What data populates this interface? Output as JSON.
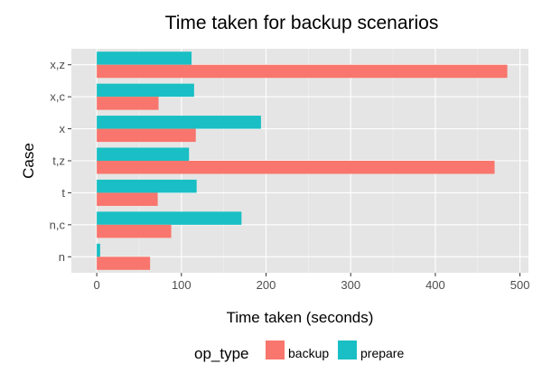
{
  "chart_data": {
    "type": "bar",
    "orientation": "horizontal",
    "title": "Time taken for backup scenarios",
    "xlabel": "Time taken (seconds)",
    "ylabel": "Case",
    "xlim": [
      -30,
      510
    ],
    "xticks": [
      0,
      100,
      200,
      300,
      400,
      500
    ],
    "categories": [
      "x,z",
      "x,c",
      "x",
      "t,z",
      "t",
      "n,c",
      "n"
    ],
    "series": [
      {
        "name": "prepare",
        "color": "#19BFC4",
        "values": [
          112,
          115,
          194,
          109,
          118,
          171,
          4
        ]
      },
      {
        "name": "backup",
        "color": "#F8766D",
        "values": [
          485,
          73,
          117,
          470,
          72,
          88,
          63
        ]
      }
    ],
    "grid": true,
    "panel_background": "#E5E5E5",
    "legend": {
      "title": "op_type",
      "position": "bottom",
      "entries": [
        {
          "label": "backup",
          "color": "#F8766D"
        },
        {
          "label": "prepare",
          "color": "#19BFC4"
        }
      ]
    }
  }
}
